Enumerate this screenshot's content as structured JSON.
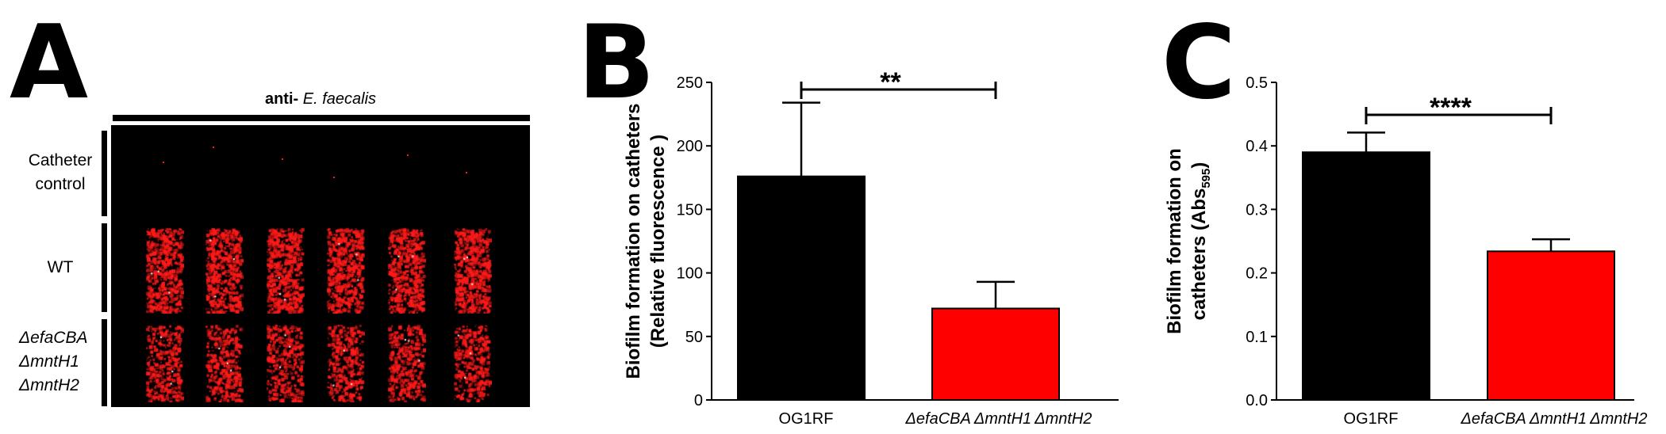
{
  "panels": {
    "a": {
      "letter": "A",
      "header": "anti- E. faecalis",
      "header_bold": "anti-",
      "header_ital": "E. faecalis",
      "rows": [
        {
          "line1": "Catheter",
          "line2": "control"
        },
        {
          "line1": "WT"
        },
        {
          "line1": "ΔefaCBA",
          "line2": "ΔmntH1",
          "line3": "ΔmntH2"
        }
      ],
      "colors": {
        "signal": "#ff1a1a",
        "background": "#000000"
      }
    },
    "b": {
      "letter": "B"
    },
    "c": {
      "letter": "C"
    }
  },
  "chart_data": [
    {
      "type": "bar",
      "categories": [
        "OG1RF",
        "ΔefaCBA ΔmntH1 ΔmntH2"
      ],
      "values": [
        176,
        72
      ],
      "errors": [
        58,
        21
      ],
      "colors": [
        "#000000",
        "#ff0000"
      ],
      "ylabel_line1": "Biofilm formation on catheters",
      "ylabel_line2": "(Relative fluorescence )",
      "ylim": [
        0,
        250
      ],
      "yticks": [
        0,
        50,
        100,
        150,
        200,
        250
      ],
      "significance": "**"
    },
    {
      "type": "bar",
      "categories": [
        "OG1RF",
        "ΔefaCBA ΔmntH1 ΔmntH2"
      ],
      "values": [
        0.39,
        0.234
      ],
      "errors": [
        0.031,
        0.019
      ],
      "colors": [
        "#000000",
        "#ff0000"
      ],
      "ylabel_line1": "Biofilm formation on",
      "ylabel_line2": "catheters (Abs",
      "ylabel_sub": "595",
      "ylabel_close": ")",
      "ylim": [
        0,
        0.5
      ],
      "yticks": [
        "0.0",
        "0.1",
        "0.2",
        "0.3",
        "0.4",
        "0.5"
      ],
      "significance": "****"
    }
  ]
}
